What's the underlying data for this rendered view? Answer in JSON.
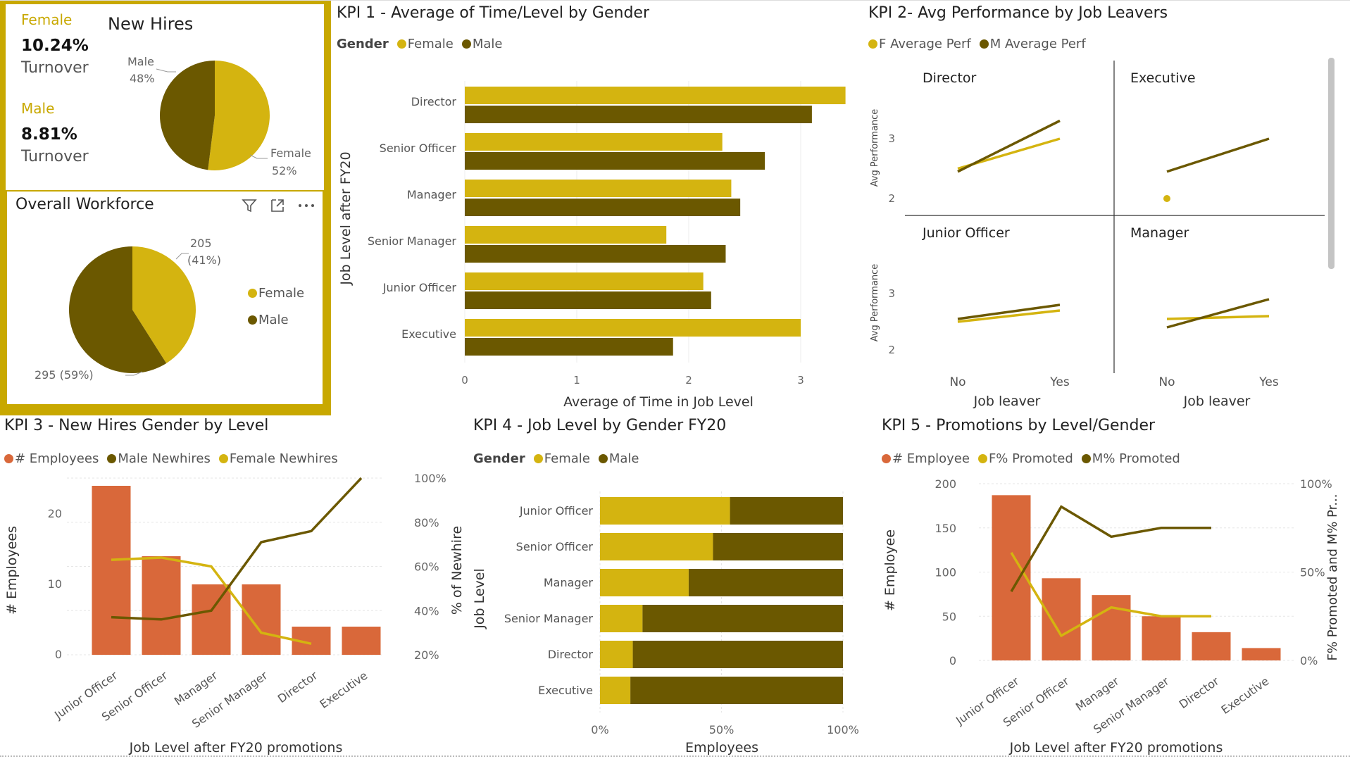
{
  "colors": {
    "female": "#d4b410",
    "male": "#6b5800",
    "employees": "#d9683a",
    "frame": "#c8a800"
  },
  "turnover": {
    "female_label": "Female",
    "female_value": "10.24%",
    "female_caption": "Turnover",
    "male_label": "Male",
    "male_value": "8.81%",
    "male_caption": "Turnover"
  },
  "new_hires": {
    "title": "New Hires",
    "chart_data": {
      "type": "pie",
      "categories": [
        "Female",
        "Male"
      ],
      "values": [
        52,
        48
      ],
      "labels": {
        "male_name": "Male",
        "male_pct": "48%",
        "female_name": "Female",
        "female_pct": "52%"
      }
    }
  },
  "overall": {
    "title": "Overall Workforce",
    "icons": [
      "filter-icon",
      "focus-mode-icon",
      "more-options-icon"
    ],
    "legend": [
      "Female",
      "Male"
    ],
    "chart_data": {
      "type": "pie",
      "categories": [
        "Female",
        "Male"
      ],
      "values": [
        205,
        295
      ],
      "labels": {
        "female_count": "205",
        "female_pct": "(41%)",
        "male": "295 (59%)"
      }
    }
  },
  "kpi1": {
    "title": "KPI 1 - Average of Time/Level by Gender",
    "legend_title": "Gender",
    "legend": [
      "Female",
      "Male"
    ],
    "chart_data": {
      "type": "bar",
      "orientation": "horizontal",
      "categories": [
        "Director",
        "Senior Officer",
        "Manager",
        "Senior Manager",
        "Junior Officer",
        "Executive"
      ],
      "series": [
        {
          "name": "Female",
          "values": [
            3.4,
            2.3,
            2.38,
            1.8,
            2.13,
            3.0
          ]
        },
        {
          "name": "Male",
          "values": [
            3.1,
            2.68,
            2.46,
            2.33,
            2.2,
            1.86
          ]
        }
      ],
      "xlabel": "Average of Time in Job Level",
      "ylabel": "Job Level after FY20",
      "xlim": [
        0,
        3.4
      ],
      "xticks": [
        "0",
        "1",
        "2",
        "3"
      ]
    }
  },
  "kpi2": {
    "title": "KPI 2- Avg Performance by Job Leavers",
    "legend": [
      "F Average Perf",
      "M Average Perf"
    ],
    "ylabel": "Avg Performance",
    "xlabel": "Job leaver",
    "xticks": [
      "No",
      "Yes"
    ],
    "yticks": [
      "2",
      "3"
    ],
    "chart_data": {
      "type": "line",
      "ylim": [
        1.7,
        3.5
      ],
      "x": [
        "No",
        "Yes"
      ],
      "panels": [
        {
          "name": "Director",
          "female": [
            2.5,
            3.0
          ],
          "male": [
            2.45,
            3.3
          ]
        },
        {
          "name": "Executive",
          "female": [
            2.0,
            null
          ],
          "male": [
            2.45,
            3.0
          ]
        },
        {
          "name": "Junior Officer",
          "female": [
            2.5,
            2.7
          ],
          "male": [
            2.55,
            2.8
          ]
        },
        {
          "name": "Manager",
          "female": [
            2.55,
            2.6
          ],
          "male": [
            2.4,
            2.9
          ]
        }
      ]
    }
  },
  "kpi3": {
    "title": "KPI 3 - New Hires Gender by Level",
    "legend": [
      "# Employees",
      "Male Newhires",
      "Female Newhires"
    ],
    "chart_data": {
      "type": "bar",
      "categories": [
        "Junior Officer",
        "Senior Officer",
        "Manager",
        "Senior Manager",
        "Director",
        "Executive"
      ],
      "series": [
        {
          "name": "# Employees",
          "values": [
            24,
            14,
            10,
            10,
            4,
            4
          ]
        },
        {
          "name": "Male Newhires",
          "values": [
            37,
            36,
            40,
            71,
            76,
            100
          ]
        },
        {
          "name": "Female Newhires",
          "values": [
            63,
            64,
            60,
            30,
            25,
            null
          ]
        }
      ],
      "ylabel": "# Employees",
      "y2label": "% of Newhire",
      "xlabel": "Job Level after FY20 promotions",
      "ylim": [
        0,
        25
      ],
      "yticks": [
        "0",
        "10",
        "20"
      ],
      "y2lim": [
        20,
        100
      ],
      "y2ticks": [
        "20%",
        "40%",
        "60%",
        "80%",
        "100%"
      ]
    }
  },
  "kpi4": {
    "title": "KPI 4 - Job Level by Gender FY20",
    "legend_title": "Gender",
    "legend": [
      "Female",
      "Male"
    ],
    "chart_data": {
      "type": "bar",
      "stacked": "100%",
      "categories": [
        "Junior Officer",
        "Senior Officer",
        "Manager",
        "Senior Manager",
        "Director",
        "Executive"
      ],
      "series": [
        {
          "name": "Female",
          "values": [
            53.5,
            46.5,
            36.5,
            17.5,
            13.5,
            12.5
          ]
        },
        {
          "name": "Male",
          "values": [
            46.5,
            53.5,
            63.5,
            82.5,
            86.5,
            87.5
          ]
        }
      ],
      "xlabel": "Employees",
      "ylabel": "Job Level",
      "xticks": [
        "0%",
        "50%",
        "100%"
      ]
    }
  },
  "kpi5": {
    "title": "KPI 5 - Promotions by Level/Gender",
    "legend": [
      "# Employee",
      "F% Promoted",
      "M% Promoted"
    ],
    "chart_data": {
      "type": "bar",
      "categories": [
        "Junior Officer",
        "Senior Officer",
        "Manager",
        "Senior Manager",
        "Director",
        "Executive"
      ],
      "series": [
        {
          "name": "# Employee",
          "values": [
            187,
            93,
            74,
            50,
            32,
            14
          ]
        },
        {
          "name": "F% Promoted",
          "values": [
            61,
            14,
            30,
            25,
            25,
            null
          ]
        },
        {
          "name": "M% Promoted",
          "values": [
            39,
            87,
            70,
            75,
            75,
            null
          ]
        }
      ],
      "ylabel": "# Employee",
      "y2label": "F% Promoted and M% Pr...",
      "xlabel": "Job Level after FY20 promotions",
      "ylim": [
        0,
        200
      ],
      "yticks": [
        "0",
        "50",
        "100",
        "150",
        "200"
      ],
      "y2lim": [
        0,
        100
      ],
      "y2ticks": [
        "0%",
        "50%",
        "100%"
      ]
    }
  }
}
